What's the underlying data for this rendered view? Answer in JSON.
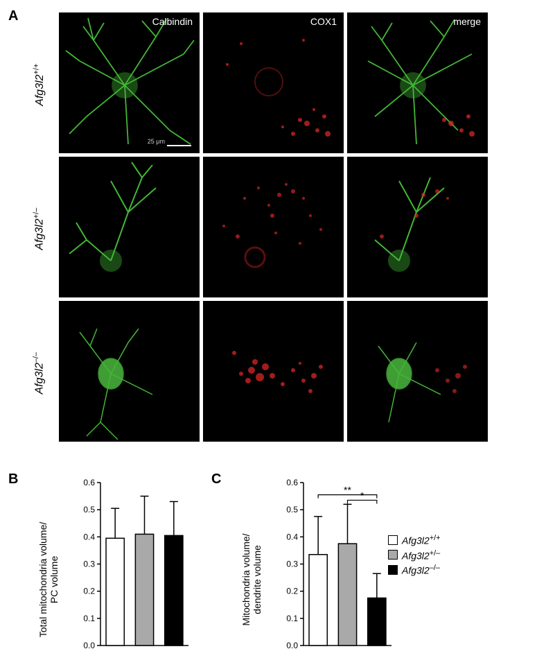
{
  "panels": {
    "A": "A",
    "B": "B",
    "C": "C"
  },
  "columns": {
    "calbindin": "Calbindin",
    "cox1": "COX1",
    "merge": "merge"
  },
  "scale": "25 μm",
  "rows": {
    "wt": "Afg3l2",
    "wt_sup": "+/+",
    "het": "Afg3l2",
    "het_sup": "+/–",
    "ko": "Afg3l2",
    "ko_sup": "–/–"
  },
  "chartB": {
    "type": "bar",
    "ylabel": "Total mitochondria volume/\nPC volume",
    "ylim": [
      0,
      0.6
    ],
    "yticks": [
      0,
      0.1,
      0.2,
      0.3,
      0.4,
      0.5,
      0.6
    ],
    "categories": [
      "wt",
      "het",
      "ko"
    ],
    "values": [
      0.395,
      0.41,
      0.405
    ],
    "errors": [
      0.11,
      0.14,
      0.125
    ],
    "colors": [
      "#ffffff",
      "#a9a9a9",
      "#000000"
    ],
    "border_color": "#000000",
    "bar_width": 0.62,
    "tick_fontsize": 12,
    "label_fontsize": 14
  },
  "chartC": {
    "type": "bar",
    "ylabel": "Mitochondria volume/\ndendrite volume",
    "ylim": [
      0,
      0.6
    ],
    "yticks": [
      0,
      0.1,
      0.2,
      0.3,
      0.4,
      0.5,
      0.6
    ],
    "categories": [
      "wt",
      "het",
      "ko"
    ],
    "values": [
      0.335,
      0.375,
      0.175
    ],
    "errors": [
      0.14,
      0.145,
      0.09
    ],
    "colors": [
      "#ffffff",
      "#a9a9a9",
      "#000000"
    ],
    "border_color": "#000000",
    "bar_width": 0.62,
    "tick_fontsize": 12,
    "label_fontsize": 14,
    "significance": [
      {
        "from": 0,
        "to": 2,
        "label": "**",
        "y": 0.555
      },
      {
        "from": 1,
        "to": 2,
        "label": "*",
        "y": 0.535
      }
    ]
  },
  "legend": {
    "items": [
      {
        "color": "#ffffff",
        "label": "Afg3l2",
        "sup": "+/+"
      },
      {
        "color": "#a9a9a9",
        "label": "Afg3l2",
        "sup": "+/–"
      },
      {
        "color": "#000000",
        "label": "Afg3l2",
        "sup": "–/–"
      }
    ]
  },
  "microscopy": {
    "green_color": "#4fd83f",
    "red_color": "#e82828",
    "background": "#000000"
  }
}
